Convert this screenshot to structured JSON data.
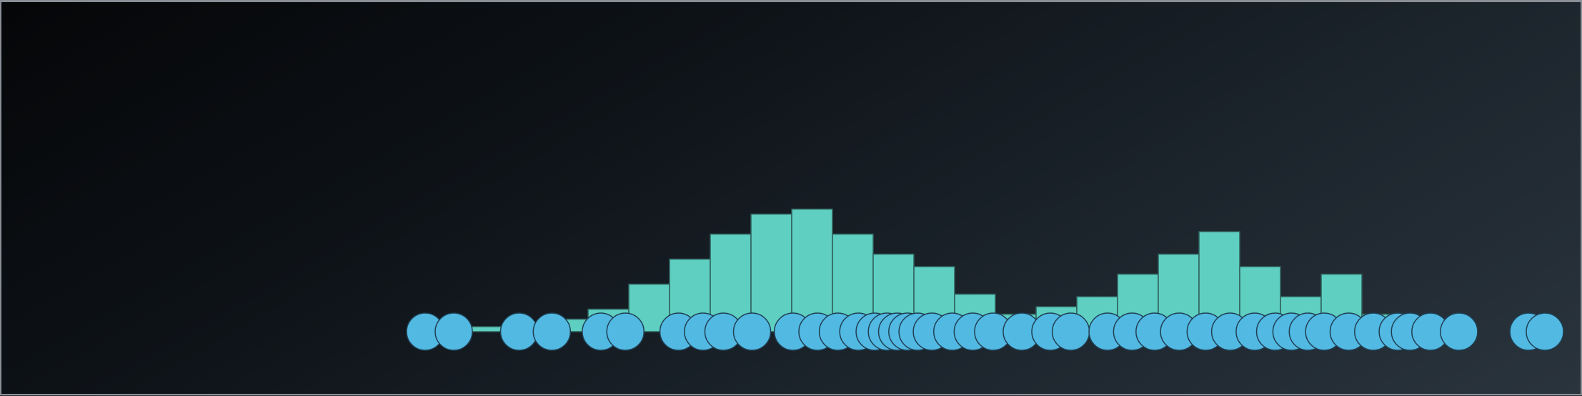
{
  "chart_data": {
    "type": "histogram",
    "description_note": "",
    "bin_range": [
      0,
      28
    ],
    "bar_heights": [
      0.3,
      1,
      1.5,
      2.5,
      4.5,
      9.5,
      14.5,
      19.5,
      23.5,
      24.5,
      19.5,
      15.5,
      13,
      7.5,
      3.5,
      5,
      7,
      11.5,
      15.5,
      20,
      13,
      7,
      11.5,
      3.5,
      1.5,
      0,
      0
    ],
    "points": [
      0.0,
      0.7,
      2.3,
      3.1,
      4.3,
      4.9,
      6.2,
      6.8,
      7.3,
      8.0,
      9.0,
      9.6,
      10.1,
      10.6,
      11.0,
      11.3,
      11.55,
      11.8,
      12.05,
      12.4,
      12.9,
      13.4,
      13.9,
      14.6,
      15.3,
      15.8,
      16.7,
      17.3,
      17.85,
      18.45,
      19.1,
      19.7,
      20.3,
      20.8,
      21.2,
      21.6,
      22.0,
      22.6,
      23.2,
      23.8,
      24.1,
      24.6,
      25.3,
      27.0,
      27.4
    ],
    "colors": {
      "bars": "#5ecfc1",
      "bar_edge": "#2f5f5a",
      "points": "#52b9e3",
      "point_edge": "#1f3f52"
    },
    "grid": false,
    "title": "",
    "xlabel": "",
    "ylabel": ""
  }
}
